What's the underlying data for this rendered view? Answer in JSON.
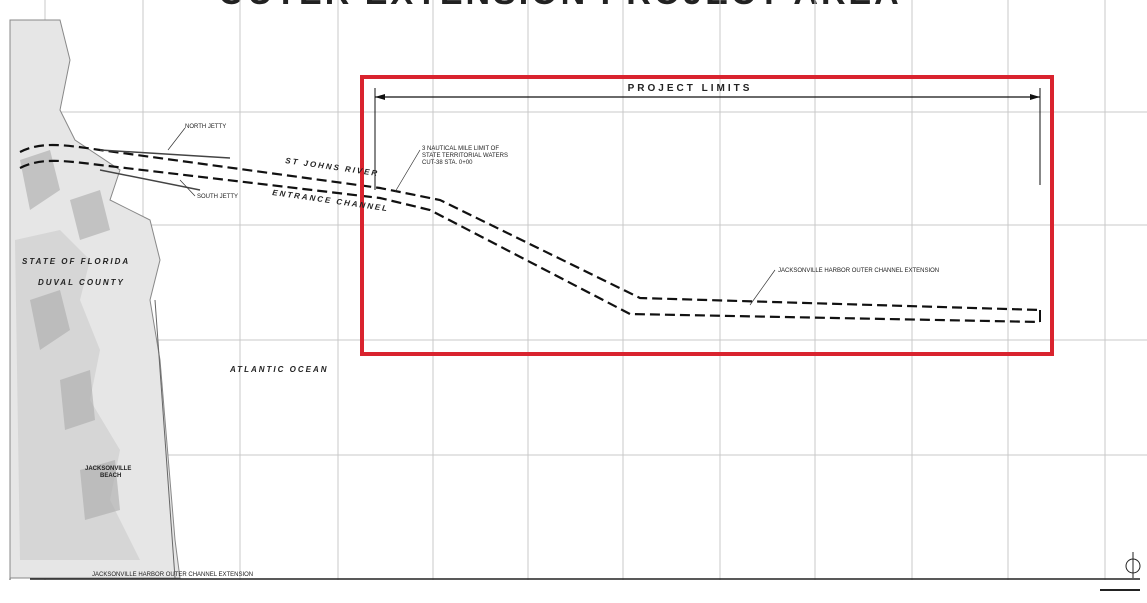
{
  "title": "OUTER EXTENSION PROJECT AREA",
  "project_limits": "PROJECT LIMITS",
  "labels": {
    "north_jetty": "NORTH JETTY",
    "south_jetty": "SOUTH JETTY",
    "river": "ST JOHNS RIVER",
    "entrance_channel": "ENTRANCE CHANNEL",
    "limit_note": [
      "3 NAUTICAL MILE LIMIT OF",
      "STATE TERRITORIAL WATERS",
      "CUT-38 STA. 0+00"
    ],
    "extension": "JACKSONVILLE HARBOR OUTER CHANNEL EXTENSION",
    "state": "STATE OF FLORIDA",
    "county": "DUVAL COUNTY",
    "ocean": "ATLANTIC OCEAN",
    "city": [
      "JACKSONVILLE",
      "BEACH"
    ]
  },
  "footer": "JACKSONVILLE HARBOR OUTER CHANNEL EXTENSION"
}
